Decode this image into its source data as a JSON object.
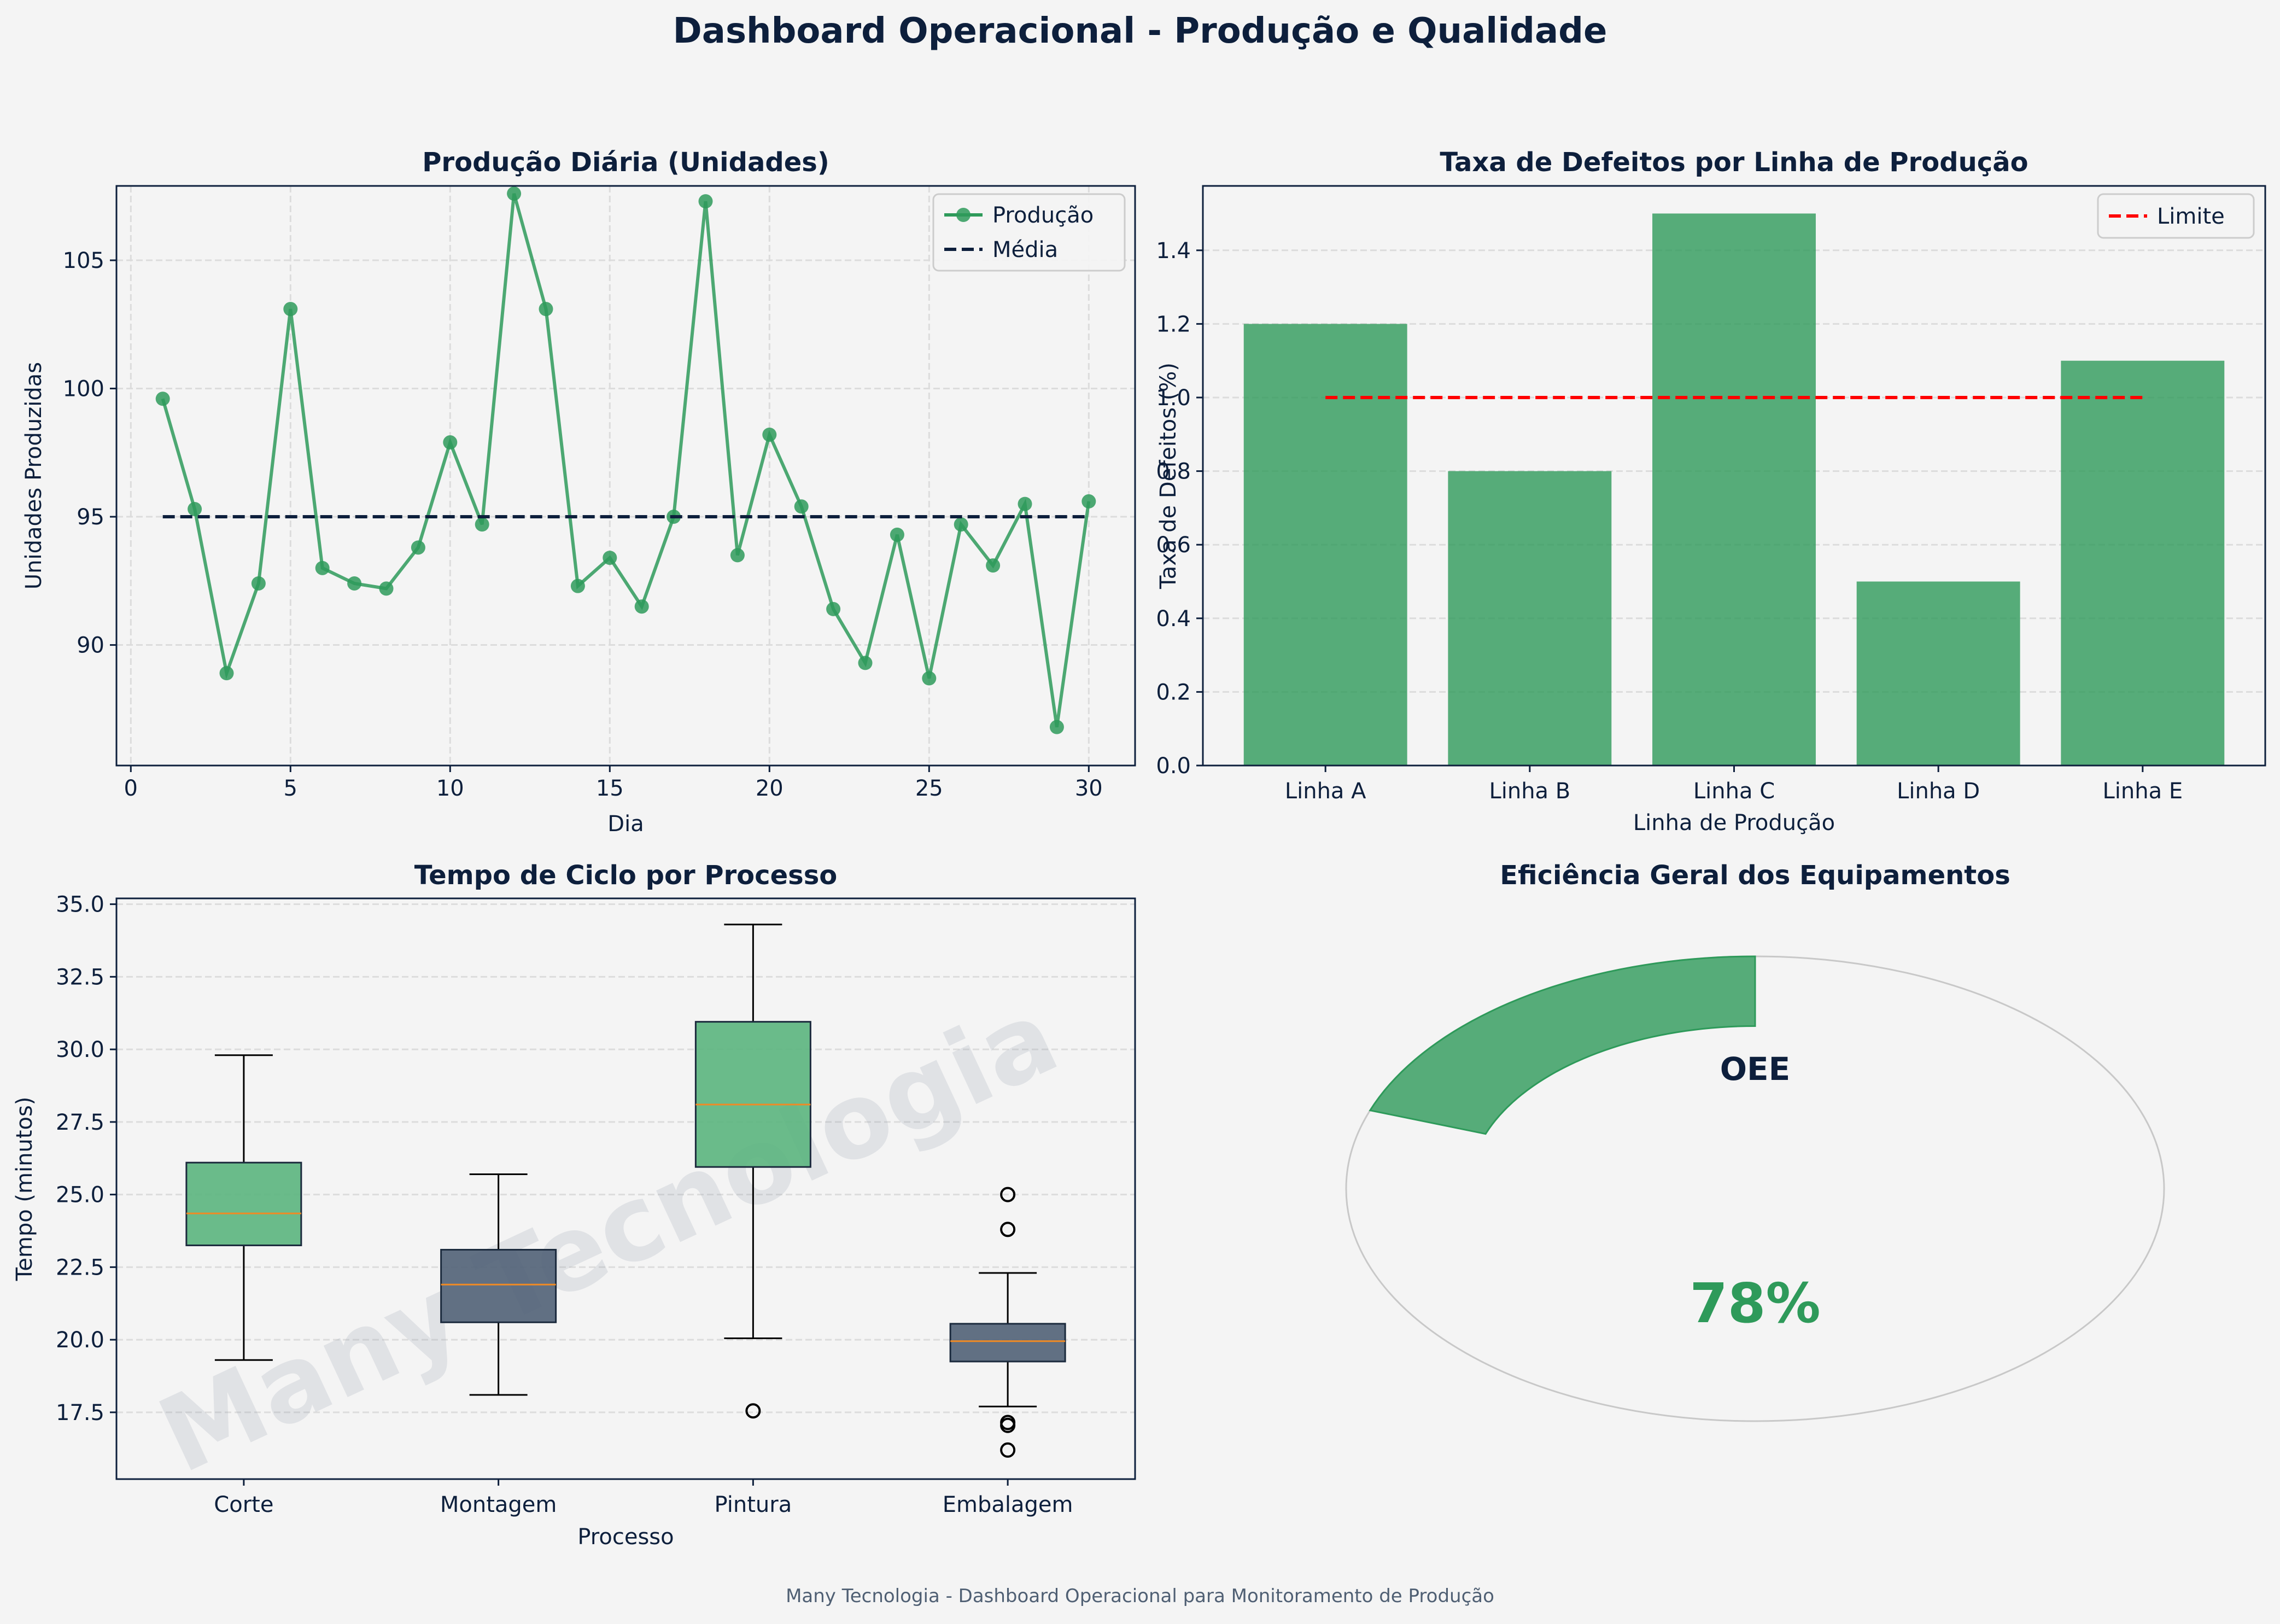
{
  "title": "Dashboard Operacional - Produção e Qualidade",
  "footer": "Many Tecnologia - Dashboard Operacional para Monitoramento de Produção",
  "watermark": "Many Tecnologia",
  "colors": {
    "background": "#f4f4f4",
    "navy": "#0d1f3c",
    "green": "#2e9a5a",
    "green_box": "#5bb57e",
    "slate_box": "#516277",
    "median": "#f08a24",
    "limit": "#ff0000",
    "grid": "#dcdcdc",
    "footer_text": "#4f5f73"
  },
  "chart_data": [
    {
      "id": "producao",
      "type": "line",
      "title": "Produção Diária (Unidades)",
      "xlabel": "Dia",
      "ylabel": "Unidades Produzidas",
      "xlim": [
        -0.45,
        31.45
      ],
      "ylim": [
        85.3,
        107.9
      ],
      "xticks": [
        0,
        5,
        10,
        15,
        20,
        25,
        30
      ],
      "yticks": [
        90,
        95,
        100,
        105
      ],
      "grid": true,
      "legend": "top-right",
      "series": [
        {
          "name": "Produção",
          "x": [
            1,
            2,
            3,
            4,
            5,
            6,
            7,
            8,
            9,
            10,
            11,
            12,
            13,
            14,
            15,
            16,
            17,
            18,
            19,
            20,
            21,
            22,
            23,
            24,
            25,
            26,
            27,
            28,
            29,
            30
          ],
          "values": [
            99.6,
            95.3,
            88.9,
            92.4,
            103.1,
            93.0,
            92.4,
            92.2,
            93.8,
            97.9,
            94.7,
            107.6,
            103.1,
            92.3,
            93.4,
            91.5,
            95.0,
            107.3,
            93.5,
            98.2,
            95.4,
            91.4,
            89.3,
            94.3,
            88.7,
            94.7,
            93.1,
            95.5,
            86.8,
            95.6
          ]
        },
        {
          "name": "Média",
          "x": [
            1,
            30
          ],
          "values": [
            95.0,
            95.0
          ]
        }
      ]
    },
    {
      "id": "defeitos",
      "type": "bar",
      "title": "Taxa de Defeitos por Linha de Produção",
      "xlabel": "Linha de Produção",
      "ylabel": "Taxa de Defeitos (%)",
      "categories": [
        "Linha A",
        "Linha B",
        "Linha C",
        "Linha D",
        "Linha E"
      ],
      "values": [
        1.2,
        0.8,
        1.5,
        0.5,
        1.1
      ],
      "ylim": [
        0,
        1.575
      ],
      "yticks": [
        0.0,
        0.2,
        0.4,
        0.6,
        0.8,
        1.0,
        1.2,
        1.4
      ],
      "grid": true,
      "legend": "top-right",
      "limit": {
        "name": "Limite",
        "value": 1.0
      }
    },
    {
      "id": "ciclo",
      "type": "box",
      "title": "Tempo de Ciclo por Processo",
      "xlabel": "Processo",
      "ylabel": "Tempo (minutos)",
      "ylim": [
        15.2,
        35.2
      ],
      "yticks": [
        17.5,
        20.0,
        22.5,
        25.0,
        27.5,
        30.0,
        32.5,
        35.0
      ],
      "grid": true,
      "categories": [
        "Corte",
        "Montagem",
        "Pintura",
        "Embalagem"
      ],
      "boxes": [
        {
          "whislo": 19.3,
          "q1": 23.25,
          "med": 24.35,
          "q3": 26.1,
          "whishi": 29.8,
          "fliers": []
        },
        {
          "whislo": 18.1,
          "q1": 20.6,
          "med": 21.9,
          "q3": 23.1,
          "whishi": 25.7,
          "fliers": []
        },
        {
          "whislo": 20.05,
          "q1": 25.95,
          "med": 28.1,
          "q3": 30.95,
          "whishi": 34.3,
          "fliers": [
            17.55
          ]
        },
        {
          "whislo": 17.7,
          "q1": 19.25,
          "med": 19.95,
          "q3": 20.55,
          "whishi": 22.3,
          "fliers": [
            25.0,
            23.8,
            17.15,
            17.05,
            16.2
          ]
        }
      ]
    },
    {
      "id": "oee",
      "type": "gauge",
      "title": "Eficiência Geral dos Equipamentos",
      "label": "OEE",
      "value": 0.78,
      "value_text": "78%"
    }
  ]
}
